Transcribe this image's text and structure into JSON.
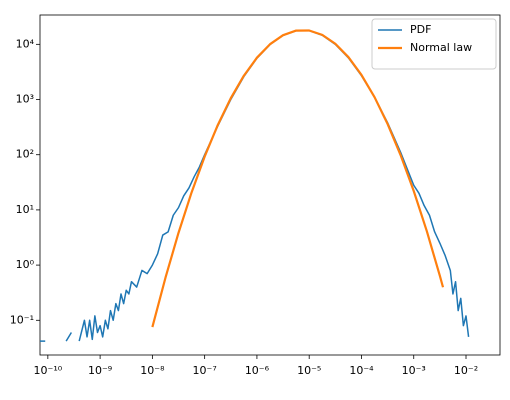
{
  "chart_data": {
    "type": "line",
    "xscale": "log",
    "yscale": "log",
    "xlim": [
      7.08e-11,
      0.0447
    ],
    "ylim": [
      0.0235,
      34000
    ],
    "xticks": [
      {
        "value": 1e-10,
        "label": "10⁻¹⁰"
      },
      {
        "value": 1e-09,
        "label": "10⁻⁹"
      },
      {
        "value": 1e-08,
        "label": "10⁻⁸"
      },
      {
        "value": 1e-07,
        "label": "10⁻⁷"
      },
      {
        "value": 1e-06,
        "label": "10⁻⁶"
      },
      {
        "value": 1e-05,
        "label": "10⁻⁵"
      },
      {
        "value": 0.0001,
        "label": "10⁻⁴"
      },
      {
        "value": 0.001,
        "label": "10⁻³"
      },
      {
        "value": 0.01,
        "label": "10⁻²"
      }
    ],
    "yticks": [
      {
        "value": 0.1,
        "label": "10⁻¹"
      },
      {
        "value": 1,
        "label": "10⁰"
      },
      {
        "value": 10,
        "label": "10¹"
      },
      {
        "value": 100,
        "label": "10²"
      },
      {
        "value": 1000,
        "label": "10³"
      },
      {
        "value": 10000,
        "label": "10⁴"
      }
    ],
    "legend": "upper right",
    "series": [
      {
        "name": "PDF",
        "color": "#1f77b4",
        "width": 1.5,
        "x": [
          7.08e-11,
          8.91e-11,
          1e-10,
          2.24e-10,
          2.82e-10,
          3.16e-10,
          3.98e-10,
          5.01e-10,
          5.62e-10,
          6.31e-10,
          7.08e-10,
          7.94e-10,
          8.91e-10,
          1e-09,
          1.12e-09,
          1.26e-09,
          1.41e-09,
          1.58e-09,
          1.78e-09,
          2e-09,
          2.24e-09,
          2.51e-09,
          2.82e-09,
          3.16e-09,
          3.55e-09,
          3.98e-09,
          5.01e-09,
          6.31e-09,
          7.94e-09,
          1e-08,
          1.26e-08,
          1.58e-08,
          2e-08,
          2.51e-08,
          3.16e-08,
          3.98e-08,
          5.01e-08,
          6.31e-08,
          7.94e-08,
          1e-07,
          1.78e-07,
          3.16e-07,
          5.62e-07,
          1e-06,
          1.78e-06,
          3.16e-06,
          5.62e-06,
          1e-05,
          1.78e-05,
          3.16e-05,
          5.62e-05,
          0.0001,
          0.000178,
          0.000316,
          0.000562,
          0.001,
          0.00126,
          0.00158,
          0.002,
          0.00251,
          0.00316,
          0.00398,
          0.00501,
          0.00562,
          0.00631,
          0.00708,
          0.00794,
          0.00891,
          0.01,
          0.0112,
          0.0126,
          0.0141
        ],
        "values": [
          0.042,
          0.042,
          null,
          0.042,
          0.06,
          null,
          0.042,
          0.1,
          0.05,
          0.1,
          0.045,
          0.12,
          0.06,
          0.08,
          0.05,
          0.1,
          0.07,
          0.15,
          0.1,
          0.2,
          0.15,
          0.3,
          0.2,
          0.35,
          0.3,
          0.5,
          0.4,
          0.8,
          0.7,
          1.0,
          1.6,
          3.5,
          4,
          8,
          11,
          18,
          25,
          40,
          60,
          100,
          330,
          1000,
          2600,
          5600,
          9900,
          14500,
          17600,
          17700,
          14600,
          10000,
          5700,
          2700,
          1100,
          380,
          110,
          28,
          20,
          12,
          8,
          4,
          2.5,
          1.5,
          0.8,
          0.3,
          0.5,
          0.15,
          0.25,
          0.08,
          0.12,
          0.05,
          null,
          0.042
        ]
      },
      {
        "name": "Normal law",
        "color": "#ff7f0e",
        "width": 2.2,
        "x": [
          1e-08,
          1.78e-08,
          3.16e-08,
          5.62e-08,
          1e-07,
          1.78e-07,
          3.16e-07,
          5.62e-07,
          1e-06,
          1.78e-06,
          3.16e-06,
          5.62e-06,
          1e-05,
          1.78e-05,
          3.16e-05,
          5.62e-05,
          0.0001,
          0.000178,
          0.000316,
          0.000562,
          0.001,
          0.00178,
          0.00316,
          0.00363
        ],
        "values": [
          0.0753,
          0.59,
          3.84,
          20.7,
          92.5,
          344,
          1057,
          2698,
          5728,
          10050,
          14660,
          17740,
          17820,
          14830,
          10250,
          5875,
          2793,
          1102,
          361,
          97.7,
          22.0,
          4.12,
          0.638,
          0.397
        ]
      }
    ]
  }
}
